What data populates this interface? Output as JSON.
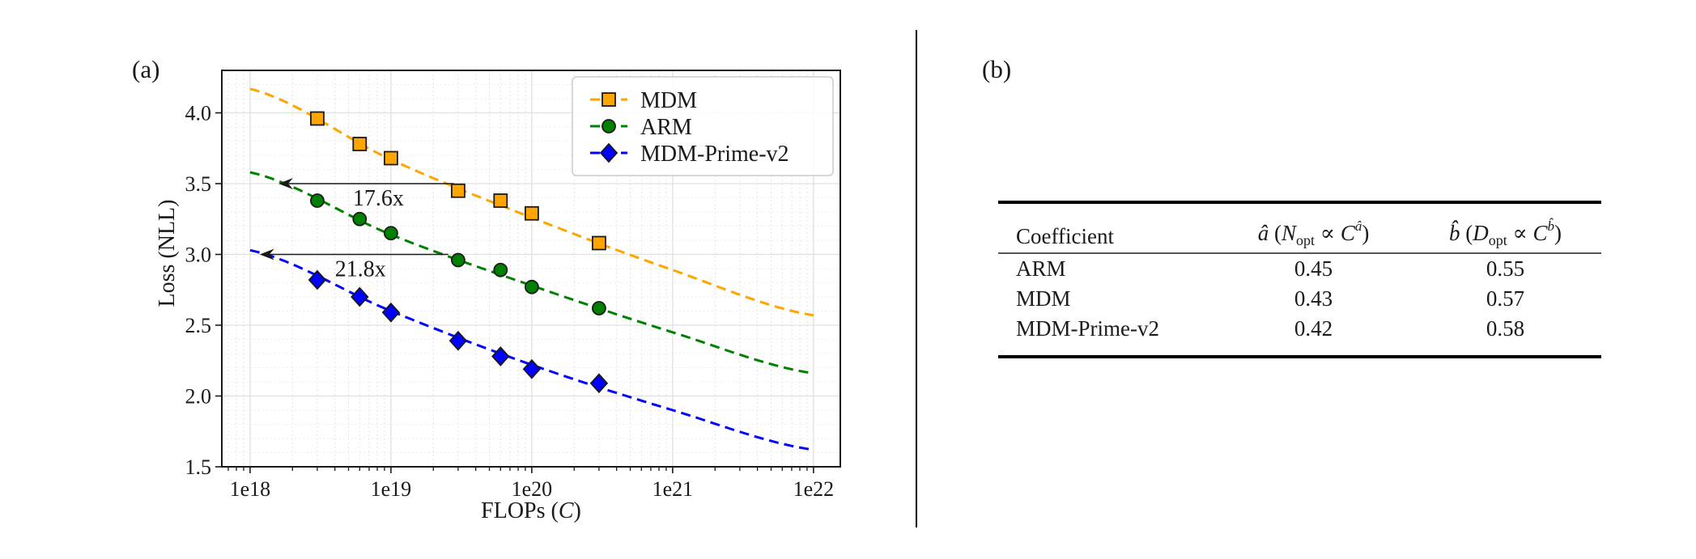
{
  "panels": {
    "a_label": "(a)",
    "b_label": "(b)"
  },
  "chart_data": {
    "type": "line",
    "title": "",
    "xlabel": "FLOPs (C)",
    "xlabel_parts": {
      "text": "FLOPs (",
      "math": "C",
      "close": ")"
    },
    "ylabel": "Loss (NLL)",
    "xscale": "log",
    "xlim": [
      6.3e+17,
      1.55e+22
    ],
    "ylim": [
      1.5,
      4.3
    ],
    "grid": true,
    "legend_position": "top-right",
    "x_ticks": [
      {
        "value": 1e+18,
        "label": "1e18"
      },
      {
        "value": 1e+19,
        "label": "1e19"
      },
      {
        "value": 1e+20,
        "label": "1e20"
      },
      {
        "value": 1e+21,
        "label": "1e21"
      },
      {
        "value": 1e+22,
        "label": "1e22"
      }
    ],
    "y_ticks": [
      {
        "value": 1.5,
        "label": "1.5"
      },
      {
        "value": 2.0,
        "label": "2.0"
      },
      {
        "value": 2.5,
        "label": "2.5"
      },
      {
        "value": 3.0,
        "label": "3.0"
      },
      {
        "value": 3.5,
        "label": "3.5"
      },
      {
        "value": 4.0,
        "label": "4.0"
      }
    ],
    "x": [
      3e+18,
      6e+18,
      1e+19,
      3e+19,
      6e+19,
      1e+20,
      3e+20
    ],
    "series": [
      {
        "name": "MDM",
        "color": "#FFA500",
        "marker": "square",
        "values": [
          3.96,
          3.78,
          3.68,
          3.45,
          3.38,
          3.29,
          3.08
        ],
        "fit": {
          "x": [
            1e+18,
            1e+19,
            1e+20,
            1e+21,
            1e+22
          ],
          "y": [
            4.17,
            3.67,
            3.26,
            2.89,
            2.57
          ]
        }
      },
      {
        "name": "ARM",
        "color": "#008000",
        "marker": "circle",
        "values": [
          3.38,
          3.25,
          3.15,
          2.96,
          2.89,
          2.77,
          2.62
        ],
        "fit": {
          "x": [
            1e+18,
            1e+19,
            1e+20,
            1e+21,
            1e+22
          ],
          "y": [
            3.58,
            3.14,
            2.78,
            2.45,
            2.16
          ]
        }
      },
      {
        "name": "MDM-Prime-v2",
        "color": "#0000FF",
        "marker": "diamond",
        "values": [
          2.82,
          2.7,
          2.59,
          2.39,
          2.28,
          2.19,
          2.09
        ],
        "fit": {
          "x": [
            1e+18,
            1e+19,
            1e+20,
            1e+21,
            1e+22
          ],
          "y": [
            3.03,
            2.6,
            2.22,
            1.9,
            1.62
          ]
        }
      }
    ],
    "annotations": [
      {
        "text": "17.6x",
        "type": "arrow",
        "y": 3.5,
        "x_from": 2.8e+19,
        "x_to": 1.59e+18
      },
      {
        "text": "21.8x",
        "type": "arrow",
        "y": 3.0,
        "x_from": 2.55e+19,
        "x_to": 1.17e+18
      }
    ]
  },
  "table": {
    "headers": [
      {
        "text": "Coefficient"
      },
      {
        "hat": "â",
        "open": " (",
        "var": "N",
        "sub": "opt",
        "rel": " ∝ ",
        "base": "C",
        "sup": "â",
        "close": ")"
      },
      {
        "hat": "b̂",
        "open": " (",
        "var": "D",
        "sub": "opt",
        "rel": " ∝ ",
        "base": "C",
        "sup": "b̂",
        "close": ")"
      }
    ],
    "rows": [
      {
        "model": "ARM",
        "a_hat": "0.45",
        "b_hat": "0.55"
      },
      {
        "model": "MDM",
        "a_hat": "0.43",
        "b_hat": "0.57"
      },
      {
        "model": "MDM-Prime-v2",
        "a_hat": "0.42",
        "b_hat": "0.58"
      }
    ]
  }
}
